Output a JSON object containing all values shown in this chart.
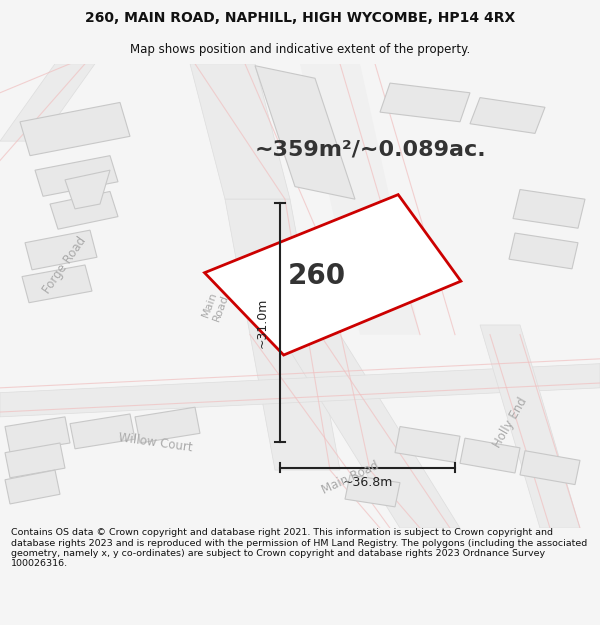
{
  "title_line1": "260, MAIN ROAD, NAPHILL, HIGH WYCOMBE, HP14 4RX",
  "title_line2": "Map shows position and indicative extent of the property.",
  "area_text": "~359m²/~0.089ac.",
  "label_260": "260",
  "dim_width": "~36.8m",
  "dim_height": "~31.0m",
  "footer": "Contains OS data © Crown copyright and database right 2021. This information is subject to Crown copyright and database rights 2023 and is reproduced with the permission of HM Land Registry. The polygons (including the associated geometry, namely x, y co-ordinates) are subject to Crown copyright and database rights 2023 Ordnance Survey 100026316.",
  "bg_color": "#f5f5f5",
  "map_bg": "#f9f9f9",
  "road_fill": "#f2d4d4",
  "road_edge": "#e8b8b8",
  "building_fill": "#e8e8e8",
  "building_edge": "#c8c8c8",
  "highlight_color": "#cc0000",
  "road_label_color": "#aaaaaa",
  "dim_color": "#222222",
  "text_dark": "#333333",
  "title_color": "#111111",
  "footer_color": "#111111",
  "thin_road_color": "#f0c0c0"
}
